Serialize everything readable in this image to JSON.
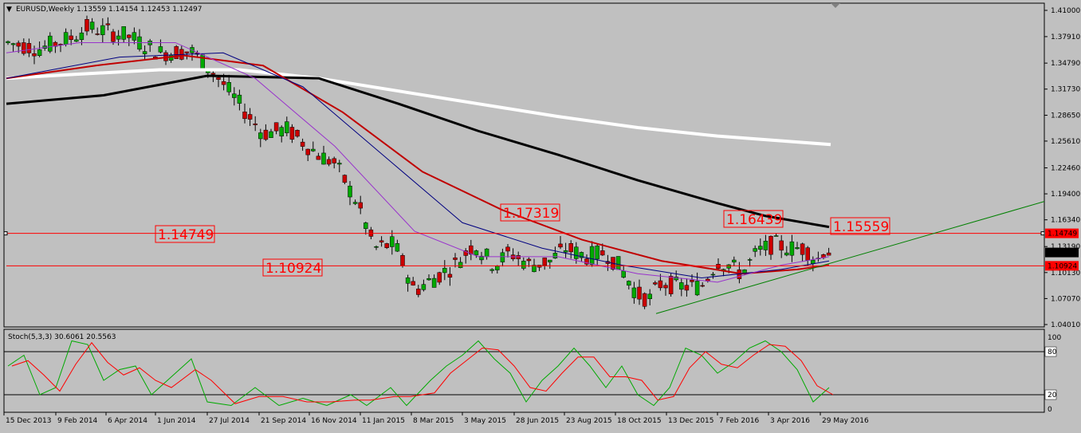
{
  "main_panel": {
    "menu_glyph": "▼",
    "header": "EURUSD,Weekly  1.13559 1.14154 1.12453 1.12497",
    "price_labels": [
      "1.41000",
      "1.37910",
      "1.34790",
      "1.31730",
      "1.28650",
      "1.25610",
      "1.22460",
      "1.19400",
      "1.16340",
      "1.13190",
      "1.10130",
      "1.07070",
      "1.04010"
    ],
    "current_price": "1.12497",
    "hline_labels": [
      "1.14749",
      "1.10924"
    ],
    "annotations": [
      "1.17319",
      "1.16439",
      "1.15559",
      "1.14749",
      "1.10924"
    ],
    "date_labels": [
      "15 Dec 2013",
      "9 Feb 2014",
      "6 Apr 2014",
      "1 Jun 2014",
      "27 Jul 2014",
      "21 Sep 2014",
      "16 Nov 2014",
      "11 Jan 2015",
      "8 Mar 2015",
      "3 May 2015",
      "28 Jun 2015",
      "23 Aug 2015",
      "18 Oct 2015",
      "13 Dec 2015",
      "7 Feb 2016",
      "3 Apr 2016",
      "29 May 2016"
    ]
  },
  "stoch_panel": {
    "header": "Stoch(5,3,3) 30.6061 20.5563",
    "levels": [
      "100",
      "80",
      "20",
      "0"
    ]
  },
  "colors": {
    "bg": "#c0c0c0",
    "bull": "#00aa00",
    "bear": "#cc0000",
    "ma_white": "#ffffff",
    "ma_black": "#000000",
    "ma_red": "#c00000",
    "ma_navy": "#000080",
    "ma_violet": "#9933cc",
    "hline": "#ff0000",
    "trend": "#008000"
  },
  "chart_data": {
    "type": "candlestick",
    "symbol": "EURUSD",
    "timeframe": "Weekly",
    "last_bar": {
      "open": 1.13559,
      "high": 1.14154,
      "low": 1.12453,
      "close": 1.12497
    },
    "ylim": [
      1.0401,
      1.41
    ],
    "horizontal_levels": [
      1.14749,
      1.10924
    ],
    "annotated_levels": [
      1.17319,
      1.16439,
      1.15559
    ],
    "stochastic": {
      "params": "5,3,3",
      "main": 30.6061,
      "signal": 20.5563,
      "levels": [
        80,
        20
      ]
    }
  }
}
